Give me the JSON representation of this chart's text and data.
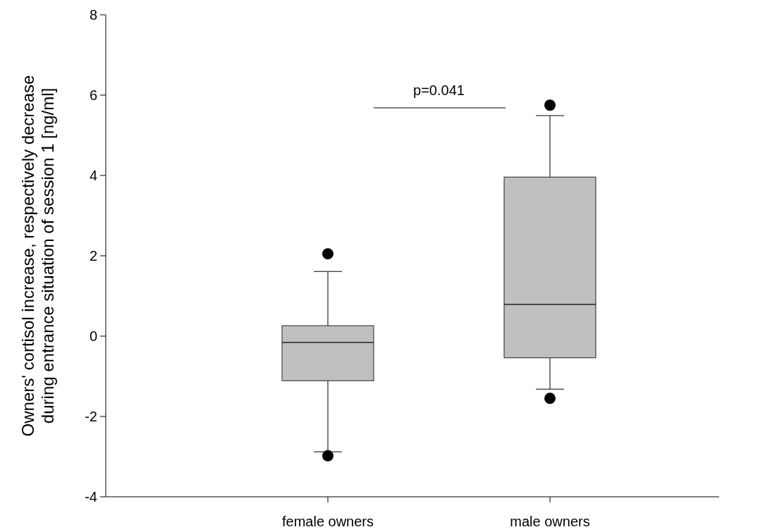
{
  "chart_data": {
    "type": "box",
    "categories": [
      "female owners",
      "male owners"
    ],
    "ylabel": "Owners' cortisol increase, respectively decrease\nduring entrance situation of session 1 [ng/ml]",
    "ylim": [
      -4,
      8
    ],
    "yticks": [
      -4,
      -2,
      0,
      2,
      4,
      6,
      8
    ],
    "color": "#c0c0c0",
    "grid": false,
    "boxes": [
      {
        "low": -2.88,
        "q1": -1.11,
        "median": -0.16,
        "q3": 0.26,
        "high": 1.61,
        "outliers": [
          2.05,
          -2.98
        ]
      },
      {
        "low": -1.32,
        "q1": -0.54,
        "median": 0.79,
        "q3": 3.96,
        "high": 5.49,
        "outliers": [
          5.75,
          -1.55
        ]
      }
    ],
    "annotations": [
      "p=0.041"
    ]
  }
}
